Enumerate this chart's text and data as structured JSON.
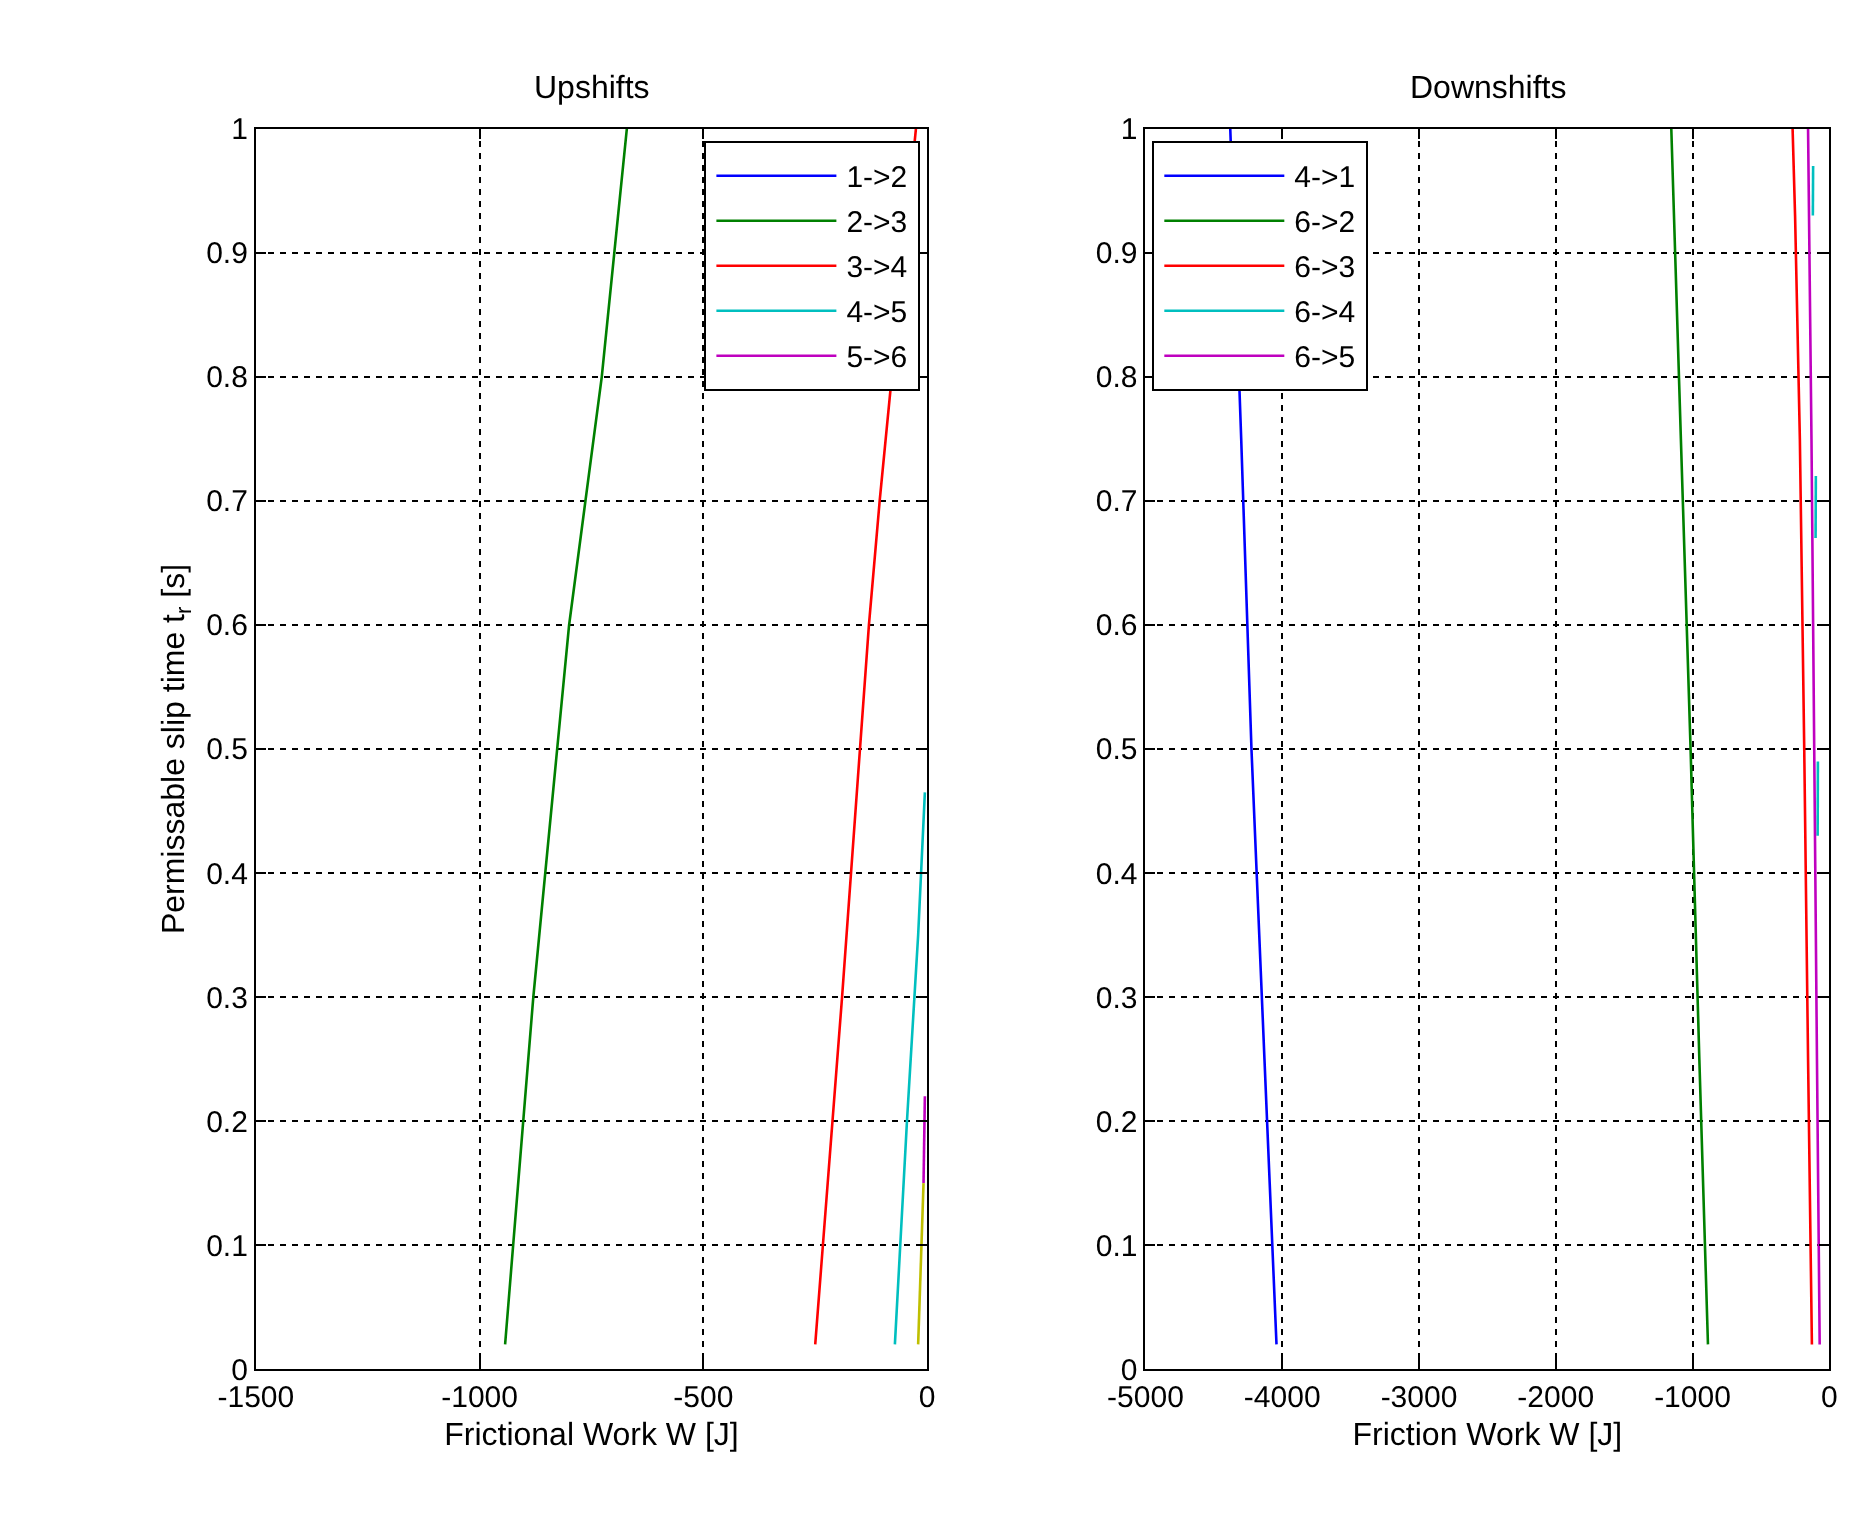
{
  "chart_data": [
    {
      "type": "line",
      "title": "Upshifts",
      "xlabel": "Frictional Work W [J]",
      "ylabel": "Permissable slip time t$_{r}$ [s]",
      "xlim": [
        -1500,
        0
      ],
      "xticks": [
        -1500,
        -1000,
        -500,
        0
      ],
      "ylim": [
        0,
        1
      ],
      "yticks": [
        0,
        0.1,
        0.2,
        0.3,
        0.4,
        0.5,
        0.6,
        0.7,
        0.8,
        0.9,
        1
      ],
      "grid": true,
      "legend": "top right",
      "line_style": "solid",
      "marker": "none",
      "series": [
        {
          "name": "1->2",
          "color": "#0000ff",
          "x": [
            null,
            null
          ],
          "values": [
            null,
            null
          ]
        },
        {
          "name": "2->3",
          "color": "#008000",
          "x": [
            -943,
            -880,
            -800,
            -727,
            -671
          ],
          "values": [
            0.02,
            0.3,
            0.6,
            0.8,
            1.0
          ]
        },
        {
          "name": "3->4",
          "color": "#ff0000",
          "x": [
            -250,
            -190,
            -130,
            -106,
            -25
          ],
          "values": [
            0.02,
            0.3,
            0.6,
            0.7,
            1.0
          ]
        },
        {
          "name": "4->5",
          "color": "#00bfbf",
          "x": [
            -72,
            -45,
            -20,
            -5
          ],
          "values": [
            0.02,
            0.2,
            0.35,
            0.465
          ]
        },
        {
          "name": "5->6",
          "color": "#bf00bf",
          "x": [
            -8,
            -5
          ],
          "values": [
            0.15,
            0.22
          ]
        },
        {
          "color": "#bfbf00",
          "x": [
            -20,
            -8
          ],
          "values": [
            0.02,
            0.15
          ]
        }
      ]
    },
    {
      "type": "line",
      "title": "Downshifts",
      "xlabel": "Friction Work W [J]",
      "xlim": [
        -5000,
        0
      ],
      "xticks": [
        -5000,
        -4000,
        -3000,
        -2000,
        -1000,
        0
      ],
      "ylim": [
        0,
        1
      ],
      "yticks": [
        0,
        0.1,
        0.2,
        0.3,
        0.4,
        0.5,
        0.6,
        0.7,
        0.8,
        0.9,
        1
      ],
      "grid": true,
      "legend": "top left",
      "line_style": "solid",
      "marker": "none",
      "series": [
        {
          "name": "4->1",
          "color": "#0000ff",
          "x": [
            -4042,
            -4130,
            -4225,
            -4300,
            -4380
          ],
          "values": [
            0.02,
            0.25,
            0.5,
            0.75,
            1.0
          ]
        },
        {
          "name": "6->2",
          "color": "#008000",
          "x": [
            -887,
            -950,
            -1014,
            -1085,
            -1155
          ],
          "values": [
            0.02,
            0.25,
            0.5,
            0.75,
            1.0
          ]
        },
        {
          "name": "6->3",
          "color": "#ff0000",
          "x": [
            -127,
            -155,
            -183,
            -215,
            -250,
            -268
          ],
          "values": [
            0.02,
            0.25,
            0.5,
            0.75,
            0.93,
            1.0
          ]
        },
        {
          "name": "6->4",
          "color": "#00bfbf",
          "x": [
            -120,
            -118,
            null,
            -100,
            -98,
            null,
            -85,
            -83
          ],
          "values": [
            0.93,
            0.97,
            null,
            0.67,
            0.72,
            null,
            0.43,
            0.49
          ]
        },
        {
          "name": "6->5",
          "color": "#bf00bf",
          "x": [
            -70,
            -90,
            -110,
            -130,
            -155
          ],
          "values": [
            0.02,
            0.25,
            0.5,
            0.75,
            1.0
          ]
        }
      ]
    }
  ]
}
